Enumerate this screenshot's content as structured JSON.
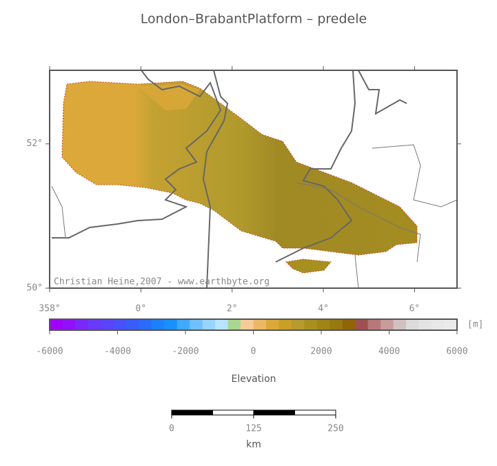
{
  "title": "London–BrabantPlatform – predele",
  "map": {
    "lon_range": [
      358,
      366.93
    ],
    "lat_range": [
      50,
      53.02
    ],
    "lon_ticks": [
      {
        "value": 358,
        "label": "358°"
      },
      {
        "value": 360,
        "label": "0°"
      },
      {
        "value": 362,
        "label": "2°"
      },
      {
        "value": 364,
        "label": "4°"
      },
      {
        "value": 366,
        "label": "6°"
      }
    ],
    "lat_ticks": [
      {
        "value": 50,
        "label": "50°"
      },
      {
        "value": 52,
        "label": "52°"
      }
    ],
    "credit": "Christian Heine,2007 - www.earthbyte.org"
  },
  "colorbar": {
    "ticks": [
      -6000,
      -4000,
      -2000,
      0,
      2000,
      4000,
      6000
    ],
    "colors": [
      "#a000ff",
      "#9010ff",
      "#7a28ff",
      "#6a38ff",
      "#5a44ff",
      "#4a50ff",
      "#3a5cff",
      "#2a6cff",
      "#1c80ff",
      "#1890ff",
      "#40a8ff",
      "#70c0ff",
      "#98d4ff",
      "#b8e4ff",
      "#a8d890",
      "#f4cc98",
      "#ecb868",
      "#dca83a",
      "#c8a028",
      "#b89a2e",
      "#a89020",
      "#a08418",
      "#987810",
      "#906408",
      "#a05050",
      "#b87878",
      "#c89c9c",
      "#d0c0c0",
      "#dcdcdc",
      "#e4e4e4",
      "#e8e8e8",
      "#ebebeb"
    ],
    "unit": "[m]",
    "label": "Elevation"
  },
  "scale_bar": {
    "ticks": [
      0,
      125,
      250
    ],
    "unit": "km"
  }
}
